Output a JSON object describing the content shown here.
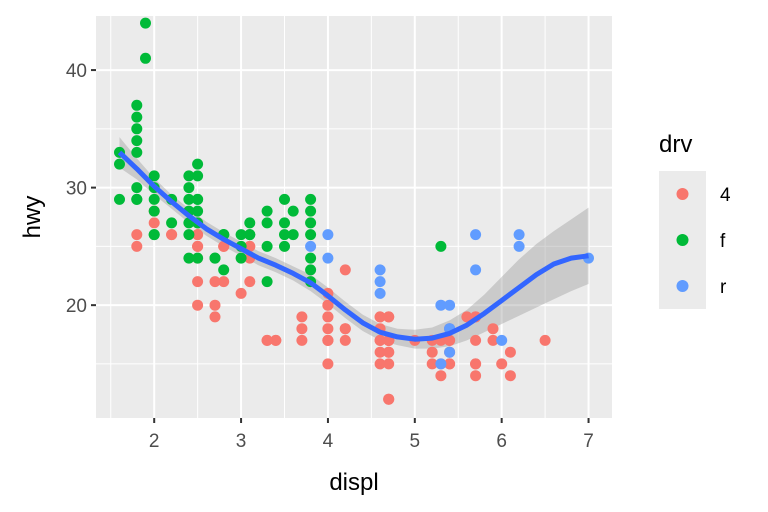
{
  "chart_data": {
    "type": "scatter",
    "title": "",
    "xlabel": "displ",
    "ylabel": "hwy",
    "xlim": [
      1.33,
      7.27
    ],
    "ylim": [
      10.4,
      44.6
    ],
    "x_ticks": [
      2,
      3,
      4,
      5,
      6,
      7
    ],
    "y_ticks": [
      20,
      30,
      40
    ],
    "grid": true,
    "legend": {
      "title": "drv",
      "position": "right",
      "entries": [
        {
          "label": "4",
          "color": "#F8766D"
        },
        {
          "label": "f",
          "color": "#00BA38"
        },
        {
          "label": "r",
          "color": "#619CFF"
        }
      ]
    },
    "series": [
      {
        "name": "4",
        "color": "#F8766D",
        "points": [
          [
            1.8,
            26
          ],
          [
            1.8,
            25
          ],
          [
            2.0,
            28
          ],
          [
            2.0,
            27
          ],
          [
            2.8,
            25
          ],
          [
            2.8,
            25
          ],
          [
            3.1,
            25
          ],
          [
            3.1,
            25
          ],
          [
            3.1,
            24
          ],
          [
            2.8,
            22
          ],
          [
            3.1,
            22
          ],
          [
            4.2,
            23
          ],
          [
            4.2,
            18
          ],
          [
            5.3,
            17
          ],
          [
            5.3,
            15
          ],
          [
            5.7,
            17
          ],
          [
            6.5,
            17
          ],
          [
            4.7,
            17
          ],
          [
            4.7,
            17
          ],
          [
            4.7,
            12
          ],
          [
            5.2,
            17
          ],
          [
            5.2,
            15
          ],
          [
            5.7,
            19
          ],
          [
            5.9,
            17
          ],
          [
            4.7,
            17
          ],
          [
            5.7,
            19
          ],
          [
            6.1,
            14
          ],
          [
            4.0,
            19
          ],
          [
            4.7,
            19
          ],
          [
            4.7,
            12
          ],
          [
            4.7,
            17
          ],
          [
            4.7,
            15
          ],
          [
            5.7,
            14
          ],
          [
            4.0,
            17
          ],
          [
            4.0,
            15
          ],
          [
            4.6,
            19
          ],
          [
            4.6,
            18
          ],
          [
            5.4,
            17
          ],
          [
            5.4,
            15
          ],
          [
            4.0,
            17
          ],
          [
            4.2,
            17
          ],
          [
            4.6,
            17
          ],
          [
            4.6,
            16
          ],
          [
            4.6,
            15
          ],
          [
            5.4,
            15
          ],
          [
            5.4,
            17
          ],
          [
            5.4,
            16
          ],
          [
            2.5,
            22
          ],
          [
            2.5,
            20
          ],
          [
            2.2,
            26
          ],
          [
            2.5,
            26
          ],
          [
            2.7,
            20
          ],
          [
            2.7,
            19
          ],
          [
            3.4,
            17
          ],
          [
            3.4,
            17
          ],
          [
            4.0,
            20
          ],
          [
            4.0,
            19
          ],
          [
            4.0,
            18
          ],
          [
            3.7,
            19
          ],
          [
            3.7,
            18
          ],
          [
            4.7,
            17
          ],
          [
            4.7,
            16
          ],
          [
            5.9,
            18
          ],
          [
            4.7,
            17
          ],
          [
            5.2,
            16
          ],
          [
            5.7,
            15
          ],
          [
            5.7,
            15
          ],
          [
            6.1,
            16
          ],
          [
            2.2,
            26
          ],
          [
            4.2,
            18
          ],
          [
            4.0,
            17
          ],
          [
            4.7,
            19
          ],
          [
            3.7,
            17
          ],
          [
            3.3,
            17
          ],
          [
            2.5,
            25
          ],
          [
            2.5,
            24
          ],
          [
            2.5,
            27
          ],
          [
            2.5,
            25
          ],
          [
            2.5,
            26
          ],
          [
            3.0,
            21
          ],
          [
            2.7,
            22
          ],
          [
            3.3,
            17
          ],
          [
            4.0,
            20
          ],
          [
            4.0,
            21
          ],
          [
            4.7,
            16
          ],
          [
            4.6,
            17
          ],
          [
            4.6,
            19
          ],
          [
            5.0,
            17
          ],
          [
            5.3,
            14
          ],
          [
            5.4,
            18
          ],
          [
            5.6,
            19
          ],
          [
            6.0,
            15
          ]
        ]
      },
      {
        "name": "f",
        "color": "#00BA38",
        "points": [
          [
            1.8,
            29
          ],
          [
            1.8,
            29
          ],
          [
            2.0,
            31
          ],
          [
            2.0,
            30
          ],
          [
            2.8,
            26
          ],
          [
            2.8,
            26
          ],
          [
            3.1,
            27
          ],
          [
            3.1,
            26
          ],
          [
            2.4,
            27
          ],
          [
            3.1,
            26
          ],
          [
            3.5,
            29
          ],
          [
            3.6,
            28
          ],
          [
            1.9,
            44
          ],
          [
            1.9,
            41
          ],
          [
            1.8,
            37
          ],
          [
            1.8,
            36
          ],
          [
            1.8,
            35
          ],
          [
            1.8,
            34
          ],
          [
            1.8,
            33
          ],
          [
            1.6,
            33
          ],
          [
            1.6,
            32
          ],
          [
            1.6,
            29
          ],
          [
            2.0,
            29
          ],
          [
            2.0,
            28
          ],
          [
            2.0,
            26
          ],
          [
            2.4,
            31
          ],
          [
            2.4,
            30
          ],
          [
            2.5,
            32
          ],
          [
            2.5,
            31
          ],
          [
            2.4,
            29
          ],
          [
            2.4,
            28
          ],
          [
            2.5,
            29
          ],
          [
            2.5,
            28
          ],
          [
            2.5,
            27
          ],
          [
            3.3,
            28
          ],
          [
            3.3,
            27
          ],
          [
            3.8,
            28
          ],
          [
            3.8,
            27
          ],
          [
            3.8,
            26
          ],
          [
            3.5,
            26
          ],
          [
            3.5,
            25
          ],
          [
            3.0,
            26
          ],
          [
            3.0,
            25
          ],
          [
            3.8,
            24
          ],
          [
            3.8,
            23
          ],
          [
            3.3,
            22
          ],
          [
            2.7,
            24
          ],
          [
            2.7,
            24
          ],
          [
            2.8,
            23
          ],
          [
            2.2,
            29
          ],
          [
            2.2,
            27
          ],
          [
            2.4,
            24
          ],
          [
            2.5,
            24
          ],
          [
            2.8,
            26
          ],
          [
            3.5,
            27
          ],
          [
            3.6,
            26
          ],
          [
            3.8,
            29
          ],
          [
            1.8,
            30
          ],
          [
            2.0,
            26
          ],
          [
            2.4,
            26
          ],
          [
            2.5,
            29
          ],
          [
            5.3,
            25
          ],
          [
            3.0,
            24
          ],
          [
            3.3,
            25
          ],
          [
            3.8,
            22
          ]
        ]
      },
      {
        "name": "r",
        "color": "#619CFF",
        "points": [
          [
            3.8,
            25
          ],
          [
            4.0,
            26
          ],
          [
            4.0,
            24
          ],
          [
            4.6,
            23
          ],
          [
            4.6,
            22
          ],
          [
            4.6,
            21
          ],
          [
            5.3,
            20
          ],
          [
            5.4,
            20
          ],
          [
            5.4,
            18
          ],
          [
            5.4,
            16
          ],
          [
            5.7,
            26
          ],
          [
            5.7,
            23
          ],
          [
            5.3,
            15
          ],
          [
            6.0,
            17
          ],
          [
            6.2,
            26
          ],
          [
            6.2,
            25
          ],
          [
            7.0,
            24
          ],
          [
            5.4,
            18
          ]
        ]
      }
    ],
    "smooth": {
      "method": "loess",
      "color": "#3366FF",
      "fit": [
        [
          1.6,
          33.0
        ],
        [
          1.8,
          31.6
        ],
        [
          2.0,
          30.1
        ],
        [
          2.2,
          28.8
        ],
        [
          2.4,
          27.6
        ],
        [
          2.6,
          26.5
        ],
        [
          2.8,
          25.6
        ],
        [
          3.0,
          24.8
        ],
        [
          3.2,
          24.0
        ],
        [
          3.4,
          23.4
        ],
        [
          3.6,
          22.7
        ],
        [
          3.8,
          21.9
        ],
        [
          4.0,
          20.8
        ],
        [
          4.2,
          19.6
        ],
        [
          4.4,
          18.5
        ],
        [
          4.6,
          17.7
        ],
        [
          4.8,
          17.3
        ],
        [
          5.0,
          17.1
        ],
        [
          5.2,
          17.2
        ],
        [
          5.4,
          17.6
        ],
        [
          5.6,
          18.3
        ],
        [
          5.8,
          19.3
        ],
        [
          6.0,
          20.4
        ],
        [
          6.2,
          21.5
        ],
        [
          6.4,
          22.6
        ],
        [
          6.6,
          23.5
        ],
        [
          6.8,
          24.0
        ],
        [
          7.0,
          24.2
        ]
      ],
      "band_upper": [
        [
          1.6,
          34.3
        ],
        [
          1.8,
          32.5
        ],
        [
          2.0,
          30.8
        ],
        [
          2.2,
          29.4
        ],
        [
          2.4,
          28.2
        ],
        [
          2.6,
          27.1
        ],
        [
          2.8,
          26.2
        ],
        [
          3.0,
          25.4
        ],
        [
          3.2,
          24.6
        ],
        [
          3.4,
          24.0
        ],
        [
          3.6,
          23.3
        ],
        [
          3.8,
          22.6
        ],
        [
          4.0,
          21.5
        ],
        [
          4.2,
          20.3
        ],
        [
          4.4,
          19.2
        ],
        [
          4.6,
          18.4
        ],
        [
          4.8,
          18.0
        ],
        [
          5.0,
          17.9
        ],
        [
          5.2,
          18.1
        ],
        [
          5.4,
          18.7
        ],
        [
          5.6,
          19.6
        ],
        [
          5.8,
          20.9
        ],
        [
          6.0,
          22.4
        ],
        [
          6.2,
          23.9
        ],
        [
          6.4,
          25.2
        ],
        [
          6.6,
          26.3
        ],
        [
          6.8,
          27.3
        ],
        [
          7.0,
          28.3
        ]
      ],
      "band_lower": [
        [
          1.6,
          31.7
        ],
        [
          1.8,
          30.7
        ],
        [
          2.0,
          29.4
        ],
        [
          2.2,
          28.2
        ],
        [
          2.4,
          27.0
        ],
        [
          2.6,
          25.9
        ],
        [
          2.8,
          25.0
        ],
        [
          3.0,
          24.2
        ],
        [
          3.2,
          23.4
        ],
        [
          3.4,
          22.8
        ],
        [
          3.6,
          22.1
        ],
        [
          3.8,
          21.2
        ],
        [
          4.0,
          20.1
        ],
        [
          4.2,
          18.9
        ],
        [
          4.4,
          17.8
        ],
        [
          4.6,
          17.0
        ],
        [
          4.8,
          16.6
        ],
        [
          5.0,
          16.3
        ],
        [
          5.2,
          16.3
        ],
        [
          5.4,
          16.5
        ],
        [
          5.6,
          17.0
        ],
        [
          5.8,
          17.7
        ],
        [
          6.0,
          18.4
        ],
        [
          6.2,
          19.1
        ],
        [
          6.4,
          19.8
        ],
        [
          6.6,
          20.5
        ],
        [
          6.8,
          21.2
        ],
        [
          7.0,
          21.8
        ]
      ]
    },
    "style": {
      "panel_bg": "#EBEBEB",
      "grid_major": "#FFFFFF",
      "band_fill": "#999999",
      "band_opacity": 0.4
    }
  }
}
